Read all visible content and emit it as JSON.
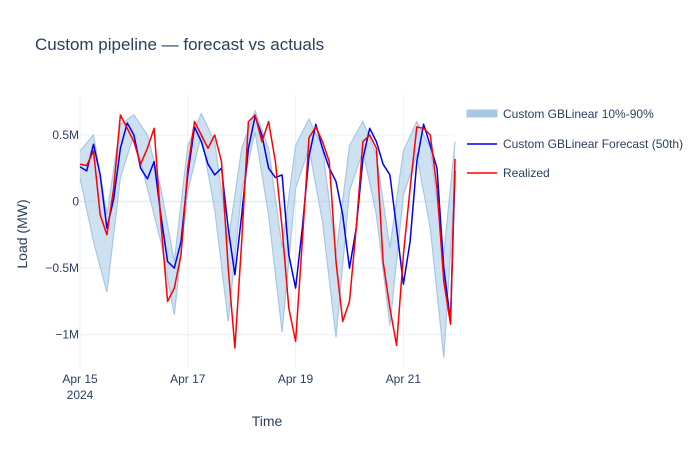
{
  "chart_data": {
    "type": "line",
    "title": "Custom pipeline — forecast vs actuals",
    "xlabel": "Time",
    "ylabel": "Load (MW)",
    "x_ticks": [
      {
        "value": "2024-04-15",
        "label": "Apr 15",
        "sublabel": "2024"
      },
      {
        "value": "2024-04-17",
        "label": "Apr 17",
        "sublabel": ""
      },
      {
        "value": "2024-04-19",
        "label": "Apr 19",
        "sublabel": ""
      },
      {
        "value": "2024-04-21",
        "label": "Apr 21",
        "sublabel": ""
      }
    ],
    "y_ticks": [
      {
        "value": 500000,
        "label": "0.5M"
      },
      {
        "value": 0,
        "label": "0"
      },
      {
        "value": -500000,
        "label": "−0.5M"
      },
      {
        "value": -1000000,
        "label": "−1M"
      }
    ],
    "xlim": [
      "2024-04-15 00:00",
      "2024-04-21 23:00"
    ],
    "ylim": [
      -1250000,
      800000
    ],
    "grid": true,
    "legend_position": "right",
    "series": [
      {
        "name": "Custom GBLinear 10%-90%",
        "kind": "band",
        "color": "#a6c8e6",
        "x": [
          "2024-04-15 00:00",
          "2024-04-15 06:00",
          "2024-04-15 12:00",
          "2024-04-15 18:00",
          "2024-04-16 00:00",
          "2024-04-16 06:00",
          "2024-04-16 12:00",
          "2024-04-16 18:00",
          "2024-04-17 00:00",
          "2024-04-17 06:00",
          "2024-04-17 12:00",
          "2024-04-17 18:00",
          "2024-04-18 00:00",
          "2024-04-18 06:00",
          "2024-04-18 12:00",
          "2024-04-18 18:00",
          "2024-04-19 00:00",
          "2024-04-19 06:00",
          "2024-04-19 12:00",
          "2024-04-19 18:00",
          "2024-04-20 00:00",
          "2024-04-20 06:00",
          "2024-04-20 12:00",
          "2024-04-20 18:00",
          "2024-04-21 00:00",
          "2024-04-21 06:00",
          "2024-04-21 12:00",
          "2024-04-21 18:00",
          "2024-04-21 23:00"
        ],
        "lower": [
          180000,
          -300000,
          -680000,
          180000,
          500000,
          100000,
          -300000,
          -850000,
          80000,
          500000,
          -60000,
          -900000,
          80000,
          520000,
          -100000,
          -980000,
          100000,
          400000,
          -150000,
          -1020000,
          80000,
          380000,
          -100000,
          -930000,
          50000,
          350000,
          -200000,
          -1170000,
          150000
        ],
        "upper": [
          380000,
          500000,
          -100000,
          580000,
          650000,
          500000,
          100000,
          -450000,
          420000,
          660000,
          450000,
          -300000,
          400000,
          680000,
          400000,
          -350000,
          420000,
          620000,
          400000,
          -400000,
          420000,
          600000,
          350000,
          -350000,
          380000,
          600000,
          400000,
          -400000,
          450000
        ]
      },
      {
        "name": "Custom GBLinear Forecast (50th)",
        "kind": "line",
        "color": "#0000ee",
        "x": [
          "2024-04-15 00:00",
          "2024-04-15 03:00",
          "2024-04-15 06:00",
          "2024-04-15 09:00",
          "2024-04-15 12:00",
          "2024-04-15 15:00",
          "2024-04-15 18:00",
          "2024-04-15 21:00",
          "2024-04-16 00:00",
          "2024-04-16 03:00",
          "2024-04-16 06:00",
          "2024-04-16 09:00",
          "2024-04-16 12:00",
          "2024-04-16 15:00",
          "2024-04-16 18:00",
          "2024-04-16 21:00",
          "2024-04-17 00:00",
          "2024-04-17 03:00",
          "2024-04-17 06:00",
          "2024-04-17 09:00",
          "2024-04-17 12:00",
          "2024-04-17 15:00",
          "2024-04-17 18:00",
          "2024-04-17 21:00",
          "2024-04-18 00:00",
          "2024-04-18 03:00",
          "2024-04-18 06:00",
          "2024-04-18 09:00",
          "2024-04-18 12:00",
          "2024-04-18 15:00",
          "2024-04-18 18:00",
          "2024-04-18 21:00",
          "2024-04-19 00:00",
          "2024-04-19 03:00",
          "2024-04-19 06:00",
          "2024-04-19 09:00",
          "2024-04-19 12:00",
          "2024-04-19 15:00",
          "2024-04-19 18:00",
          "2024-04-19 21:00",
          "2024-04-20 00:00",
          "2024-04-20 03:00",
          "2024-04-20 06:00",
          "2024-04-20 09:00",
          "2024-04-20 12:00",
          "2024-04-20 15:00",
          "2024-04-20 18:00",
          "2024-04-20 21:00",
          "2024-04-21 00:00",
          "2024-04-21 03:00",
          "2024-04-21 06:00",
          "2024-04-21 09:00",
          "2024-04-21 12:00",
          "2024-04-21 15:00",
          "2024-04-21 18:00",
          "2024-04-21 21:00",
          "2024-04-21 23:00"
        ],
        "values": [
          260000,
          230000,
          430000,
          200000,
          -200000,
          20000,
          400000,
          590000,
          500000,
          250000,
          170000,
          300000,
          -100000,
          -450000,
          -500000,
          -300000,
          200000,
          560000,
          450000,
          280000,
          200000,
          250000,
          -200000,
          -550000,
          -100000,
          400000,
          640000,
          500000,
          250000,
          180000,
          200000,
          -400000,
          -650000,
          -200000,
          340000,
          580000,
          400000,
          250000,
          150000,
          -100000,
          -500000,
          -200000,
          320000,
          550000,
          450000,
          280000,
          200000,
          -200000,
          -620000,
          -300000,
          300000,
          580000,
          420000,
          250000,
          -500000,
          -900000,
          230000
        ]
      },
      {
        "name": "Realized",
        "kind": "line",
        "color": "#ff0000",
        "x": [
          "2024-04-15 00:00",
          "2024-04-15 03:00",
          "2024-04-15 06:00",
          "2024-04-15 09:00",
          "2024-04-15 12:00",
          "2024-04-15 15:00",
          "2024-04-15 18:00",
          "2024-04-15 21:00",
          "2024-04-16 00:00",
          "2024-04-16 03:00",
          "2024-04-16 06:00",
          "2024-04-16 09:00",
          "2024-04-16 12:00",
          "2024-04-16 15:00",
          "2024-04-16 18:00",
          "2024-04-16 21:00",
          "2024-04-17 00:00",
          "2024-04-17 03:00",
          "2024-04-17 06:00",
          "2024-04-17 09:00",
          "2024-04-17 12:00",
          "2024-04-17 15:00",
          "2024-04-17 18:00",
          "2024-04-17 21:00",
          "2024-04-18 00:00",
          "2024-04-18 03:00",
          "2024-04-18 06:00",
          "2024-04-18 09:00",
          "2024-04-18 12:00",
          "2024-04-18 15:00",
          "2024-04-18 18:00",
          "2024-04-18 21:00",
          "2024-04-19 00:00",
          "2024-04-19 03:00",
          "2024-04-19 06:00",
          "2024-04-19 09:00",
          "2024-04-19 12:00",
          "2024-04-19 15:00",
          "2024-04-19 18:00",
          "2024-04-19 21:00",
          "2024-04-20 00:00",
          "2024-04-20 03:00",
          "2024-04-20 06:00",
          "2024-04-20 09:00",
          "2024-04-20 12:00",
          "2024-04-20 15:00",
          "2024-04-20 18:00",
          "2024-04-20 21:00",
          "2024-04-21 00:00",
          "2024-04-21 03:00",
          "2024-04-21 06:00",
          "2024-04-21 09:00",
          "2024-04-21 12:00",
          "2024-04-21 15:00",
          "2024-04-21 18:00",
          "2024-04-21 21:00",
          "2024-04-21 23:00"
        ],
        "values": [
          280000,
          270000,
          380000,
          -100000,
          -250000,
          100000,
          650000,
          550000,
          450000,
          280000,
          400000,
          550000,
          -150000,
          -750000,
          -650000,
          -400000,
          250000,
          600000,
          500000,
          400000,
          500000,
          300000,
          -500000,
          -1100000,
          -300000,
          600000,
          650000,
          450000,
          600000,
          300000,
          -200000,
          -800000,
          -1050000,
          -300000,
          480000,
          560000,
          450000,
          300000,
          -450000,
          -900000,
          -750000,
          -200000,
          450000,
          500000,
          400000,
          -450000,
          -800000,
          -1080000,
          -400000,
          100000,
          560000,
          550000,
          500000,
          100000,
          -600000,
          -920000,
          320000
        ]
      }
    ]
  }
}
